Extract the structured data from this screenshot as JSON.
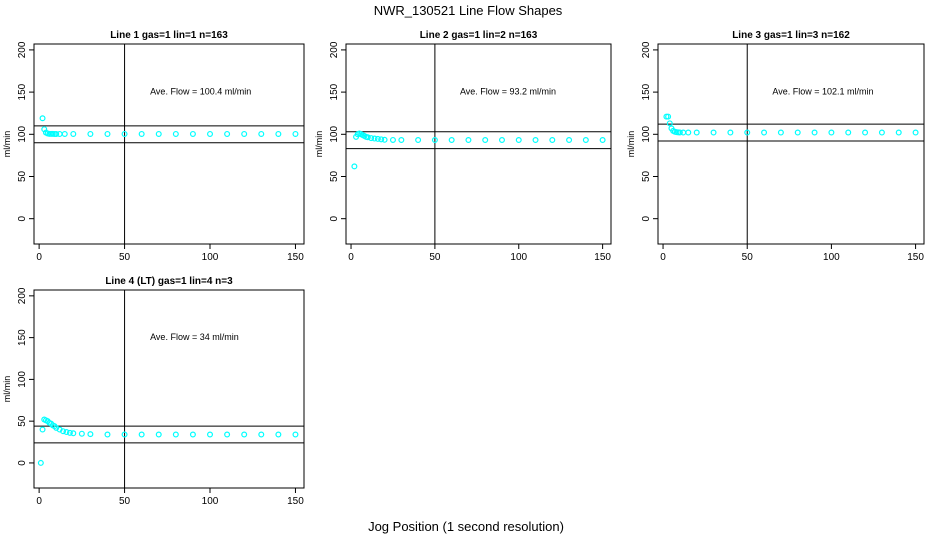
{
  "title": "NWR_130521  Line Flow Shapes",
  "xlabel": "Jog Position (1 second resolution)",
  "colors": {
    "points": "#00ffff",
    "axis": "#000000"
  },
  "chart_data": [
    {
      "type": "scatter",
      "title": "Line 1 gas=1 lin=1 n=163",
      "ylabel": "ml/min",
      "annotation": "Ave. Flow =  100.4  ml/min",
      "xlim": [
        -3,
        155
      ],
      "ylim": [
        -30,
        207
      ],
      "xticks": [
        0,
        50,
        100,
        150
      ],
      "yticks": [
        0,
        50,
        100,
        150,
        200
      ],
      "hlines": [
        110,
        90
      ],
      "vline": 50,
      "x": [
        2,
        3,
        4,
        5,
        6,
        7,
        8,
        9,
        10,
        12,
        15,
        20,
        30,
        40,
        50,
        60,
        70,
        80,
        90,
        100,
        110,
        120,
        130,
        140,
        150
      ],
      "y": [
        119,
        106,
        102,
        101,
        100.5,
        100.5,
        100.5,
        100.4,
        100.4,
        100.4,
        100.4,
        100.4,
        100.4,
        100.4,
        100.4,
        100.4,
        100.4,
        100.4,
        100.4,
        100.4,
        100.4,
        100.4,
        100.4,
        100.4,
        100.4
      ]
    },
    {
      "type": "scatter",
      "title": "Line 2 gas=1 lin=2 n=163",
      "ylabel": "ml/min",
      "annotation": "Ave. Flow =  93.2  ml/min",
      "xlim": [
        -3,
        155
      ],
      "ylim": [
        -30,
        207
      ],
      "xticks": [
        0,
        50,
        100,
        150
      ],
      "yticks": [
        0,
        50,
        100,
        150,
        200
      ],
      "hlines": [
        103,
        83
      ],
      "vline": 50,
      "x": [
        2,
        3,
        4,
        5,
        6,
        7,
        8,
        9,
        10,
        12,
        14,
        16,
        18,
        20,
        25,
        30,
        40,
        50,
        60,
        70,
        80,
        90,
        100,
        110,
        120,
        130,
        140,
        150
      ],
      "y": [
        62,
        97,
        100,
        101,
        100,
        99,
        98,
        97,
        96.5,
        95.5,
        95,
        94.5,
        94,
        93.5,
        93.3,
        93.2,
        93.2,
        93.2,
        93.2,
        93.2,
        93.2,
        93.2,
        93.2,
        93.2,
        93.2,
        93.2,
        93.2,
        93.2
      ]
    },
    {
      "type": "scatter",
      "title": "Line 3 gas=1 lin=3 n=162",
      "ylabel": "ml/min",
      "annotation": "Ave. Flow =  102.1  ml/min",
      "xlim": [
        -3,
        155
      ],
      "ylim": [
        -30,
        207
      ],
      "xticks": [
        0,
        50,
        100,
        150
      ],
      "yticks": [
        0,
        50,
        100,
        150,
        200
      ],
      "hlines": [
        112,
        92
      ],
      "vline": 50,
      "x": [
        2,
        3,
        4,
        5,
        6,
        7,
        8,
        9,
        10,
        12,
        15,
        20,
        30,
        40,
        50,
        60,
        70,
        80,
        90,
        100,
        110,
        120,
        130,
        140,
        150
      ],
      "y": [
        121,
        121,
        113,
        107,
        104,
        103,
        102.5,
        102.3,
        102.2,
        102.1,
        102.1,
        102.1,
        102.1,
        102.1,
        102.1,
        102.1,
        102.1,
        102.1,
        102.1,
        102.1,
        102.1,
        102.1,
        102.1,
        102.1,
        102.1
      ]
    },
    {
      "type": "scatter",
      "title": "Line 4 (LT) gas=1 lin=4 n=3",
      "ylabel": "ml/min",
      "annotation": "Ave. Flow =  34  ml/min",
      "xlim": [
        -3,
        155
      ],
      "ylim": [
        -30,
        207
      ],
      "xticks": [
        0,
        50,
        100,
        150
      ],
      "yticks": [
        0,
        50,
        100,
        150,
        200
      ],
      "hlines": [
        44,
        24
      ],
      "vline": 50,
      "x": [
        1,
        2,
        3,
        4,
        5,
        6,
        7,
        8,
        9,
        10,
        12,
        14,
        16,
        18,
        20,
        25,
        30,
        40,
        50,
        60,
        70,
        80,
        90,
        100,
        110,
        120,
        130,
        140,
        150
      ],
      "y": [
        0,
        40,
        52,
        51,
        50,
        48,
        47,
        45,
        44,
        42,
        40,
        38,
        37,
        36,
        35.5,
        35,
        34.5,
        34,
        34,
        34,
        34,
        34,
        34,
        34,
        34,
        34,
        34,
        34,
        34
      ]
    }
  ]
}
